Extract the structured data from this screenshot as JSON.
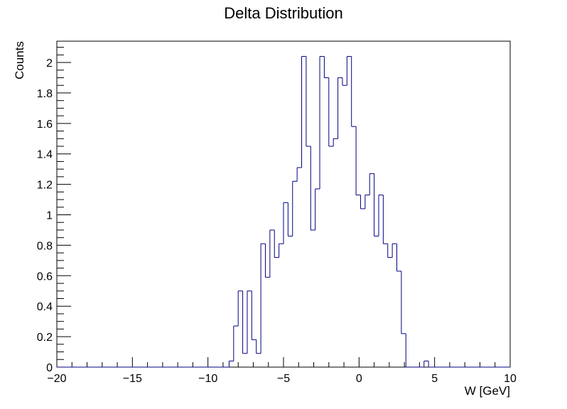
{
  "chart_data": {
    "type": "histogram",
    "title": "Delta Distribution",
    "xlabel": "W [GeV]",
    "ylabel": "Counts",
    "xlim": [
      -20,
      10
    ],
    "ylim": [
      0,
      2.14
    ],
    "bin_width": 0.3,
    "x_ticks": [
      -20,
      -15,
      -10,
      -5,
      0,
      5,
      10
    ],
    "x_tick_labels": [
      "−20",
      "−15",
      "−10",
      "−5",
      "0",
      "5",
      "10"
    ],
    "y_ticks": [
      0,
      0.2,
      0.4,
      0.6,
      0.8,
      1,
      1.2,
      1.4,
      1.6,
      1.8,
      2
    ],
    "y_tick_labels": [
      "0",
      "0.2",
      "0.4",
      "0.6",
      "0.8",
      "1",
      "1.2",
      "1.4",
      "1.6",
      "1.8",
      "2"
    ],
    "line_color": "#000080",
    "frame_color": "#000000",
    "bins": [
      {
        "x0": -8.6,
        "y": 0.04
      },
      {
        "x0": -8.3,
        "y": 0.27
      },
      {
        "x0": -8.0,
        "y": 0.5
      },
      {
        "x0": -7.7,
        "y": 0.09
      },
      {
        "x0": -7.4,
        "y": 0.5
      },
      {
        "x0": -7.1,
        "y": 0.18
      },
      {
        "x0": -6.8,
        "y": 0.09
      },
      {
        "x0": -6.5,
        "y": 0.81
      },
      {
        "x0": -6.2,
        "y": 0.59
      },
      {
        "x0": -5.9,
        "y": 0.9
      },
      {
        "x0": -5.6,
        "y": 0.72
      },
      {
        "x0": -5.3,
        "y": 0.81
      },
      {
        "x0": -5.0,
        "y": 1.08
      },
      {
        "x0": -4.7,
        "y": 0.86
      },
      {
        "x0": -4.4,
        "y": 1.22
      },
      {
        "x0": -4.1,
        "y": 1.31
      },
      {
        "x0": -3.8,
        "y": 2.04
      },
      {
        "x0": -3.5,
        "y": 1.45
      },
      {
        "x0": -3.2,
        "y": 0.9
      },
      {
        "x0": -2.9,
        "y": 1.17
      },
      {
        "x0": -2.6,
        "y": 2.04
      },
      {
        "x0": -2.3,
        "y": 1.9
      },
      {
        "x0": -2.0,
        "y": 1.45
      },
      {
        "x0": -1.7,
        "y": 1.5
      },
      {
        "x0": -1.4,
        "y": 1.9
      },
      {
        "x0": -1.1,
        "y": 1.85
      },
      {
        "x0": -0.8,
        "y": 2.04
      },
      {
        "x0": -0.5,
        "y": 1.58
      },
      {
        "x0": -0.2,
        "y": 1.13
      },
      {
        "x0": 0.1,
        "y": 1.04
      },
      {
        "x0": 0.4,
        "y": 1.13
      },
      {
        "x0": 0.7,
        "y": 1.27
      },
      {
        "x0": 1.0,
        "y": 0.86
      },
      {
        "x0": 1.3,
        "y": 1.13
      },
      {
        "x0": 1.6,
        "y": 0.81
      },
      {
        "x0": 1.9,
        "y": 0.72
      },
      {
        "x0": 2.2,
        "y": 0.81
      },
      {
        "x0": 2.5,
        "y": 0.63
      },
      {
        "x0": 2.8,
        "y": 0.22
      },
      {
        "x0": 3.1,
        "y": 0
      },
      {
        "x0": 3.4,
        "y": 0
      },
      {
        "x0": 3.7,
        "y": 0
      },
      {
        "x0": 4.0,
        "y": 0
      },
      {
        "x0": 4.3,
        "y": 0.04
      },
      {
        "x0": 4.6,
        "y": 0
      }
    ]
  }
}
